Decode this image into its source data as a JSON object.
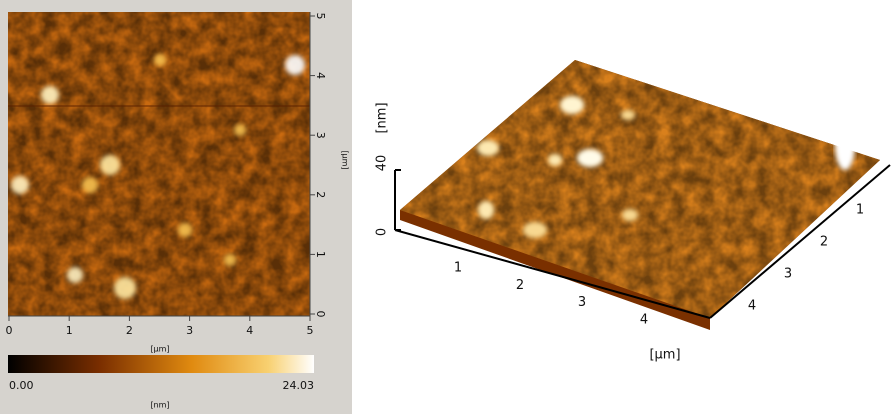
{
  "afm_2d": {
    "x_ticks": [
      "0",
      "1",
      "2",
      "3",
      "4",
      "5"
    ],
    "y_ticks": [
      "5",
      "4",
      "3",
      "2",
      "1",
      "0"
    ],
    "x_unit": "[µm]",
    "y_unit": "[µm]",
    "colorbar": {
      "min_label": "0.00",
      "max_label": "24.03",
      "unit": "[nm]"
    }
  },
  "afm_3d": {
    "z_ticks": [
      "0",
      "40"
    ],
    "z_unit": "[nm]",
    "x_ticks": [
      "1",
      "2",
      "3",
      "4"
    ],
    "y_ticks": [
      "4",
      "3",
      "2",
      "1"
    ],
    "xy_unit": "[µm]"
  }
}
